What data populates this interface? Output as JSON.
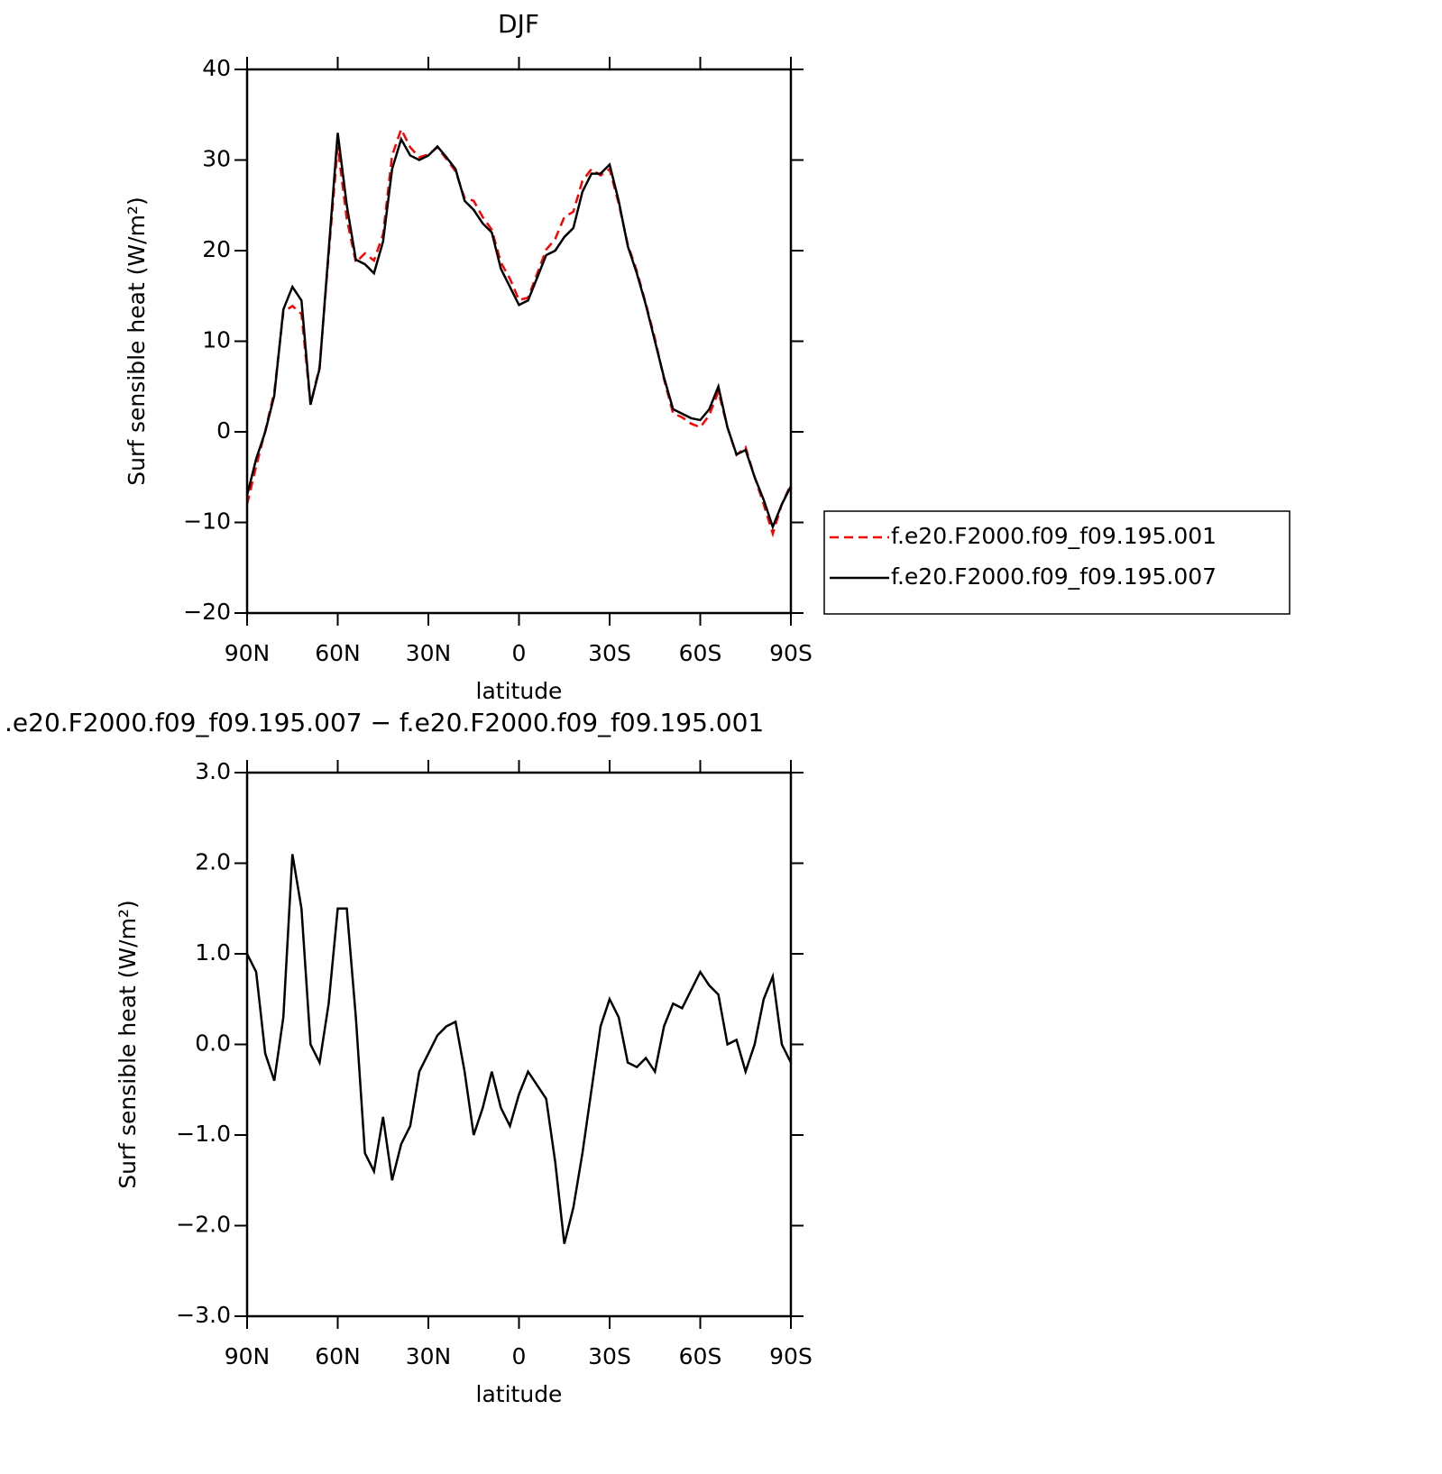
{
  "chart_data": [
    {
      "type": "line",
      "title": "DJF",
      "xlabel": "latitude",
      "ylabel": "Surf sensible heat (W/m²)",
      "x": [
        90,
        87,
        84,
        81,
        78,
        75,
        72,
        69,
        66,
        63,
        60,
        57,
        54,
        51,
        48,
        45,
        42,
        39,
        36,
        33,
        30,
        27,
        24,
        21,
        18,
        15,
        12,
        9,
        6,
        3,
        0,
        -3,
        -6,
        -9,
        -12,
        -15,
        -18,
        -21,
        -24,
        -27,
        -30,
        -33,
        -36,
        -39,
        -42,
        -45,
        -48,
        -51,
        -54,
        -57,
        -60,
        -63,
        -66,
        -69,
        -72,
        -75,
        -78,
        -81,
        -84,
        -87,
        -90
      ],
      "series": [
        {
          "name": "f.e20.F2000.f09_f09.195.001",
          "color": "#ff0000",
          "style": "dashed",
          "values": [
            -8.0,
            -3.8,
            0.1,
            4.4,
            13.2,
            13.9,
            13.0,
            3.0,
            7.2,
            19.55,
            31.5,
            23.5,
            18.7,
            19.7,
            18.9,
            21.8,
            30.5,
            33.4,
            31.4,
            30.3,
            30.6,
            31.4,
            30.1,
            28.75,
            25.8,
            25.5,
            23.7,
            22.3,
            18.7,
            16.9,
            14.55,
            14.8,
            17.45,
            20.1,
            21.3,
            23.7,
            24.3,
            27.7,
            29.0,
            28.3,
            29.0,
            25.2,
            20.7,
            17.75,
            14.15,
            10.3,
            5.8,
            2.05,
            1.6,
            0.9,
            0.5,
            1.85,
            4.45,
            0.5,
            -2.55,
            -1.7,
            -5.0,
            -8.0,
            -11.25,
            -8.0,
            -5.8
          ]
        },
        {
          "name": "f.e20.F2000.f09_f09.195.007",
          "color": "#000000",
          "style": "solid",
          "values": [
            -7,
            -3,
            0,
            4,
            13.5,
            16,
            14.5,
            3,
            7,
            20,
            33,
            25,
            19,
            18.5,
            17.5,
            21,
            29,
            32.3,
            30.5,
            30,
            30.5,
            31.5,
            30.3,
            29,
            25.5,
            24.5,
            23,
            22,
            18,
            16,
            14,
            14.5,
            17,
            19.5,
            20,
            21.5,
            22.5,
            26.5,
            28.5,
            28.5,
            29.5,
            25.5,
            20.5,
            17.5,
            14,
            10,
            6,
            2.5,
            2,
            1.5,
            1.3,
            2.5,
            5,
            0.5,
            -2.5,
            -2,
            -5,
            -7.5,
            -10.5,
            -8,
            -6
          ]
        }
      ],
      "xlim": [
        90,
        -90
      ],
      "xticks": [
        {
          "value": 90,
          "label": "90N"
        },
        {
          "value": 60,
          "label": "60N"
        },
        {
          "value": 30,
          "label": "30N"
        },
        0,
        {
          "value": -30,
          "label": "30S"
        },
        {
          "value": -60,
          "label": "60S"
        },
        {
          "value": -90,
          "label": "90S"
        }
      ],
      "ylim": [
        -20,
        40
      ],
      "yticks": [
        {
          "value": -20,
          "label": "−20"
        },
        {
          "value": -10,
          "label": "−10"
        },
        0,
        10,
        20,
        30,
        40
      ],
      "legend": "outside-right"
    },
    {
      "type": "line",
      "title": ".e20.F2000.f09_f09.195.007 − f.e20.F2000.f09_f09.195.001",
      "xlabel": "latitude",
      "ylabel": "Surf sensible heat (W/m²)",
      "x": [
        90,
        87,
        84,
        81,
        78,
        75,
        72,
        69,
        66,
        63,
        60,
        57,
        54,
        51,
        48,
        45,
        42,
        39,
        36,
        33,
        30,
        27,
        24,
        21,
        18,
        15,
        12,
        9,
        6,
        3,
        0,
        -3,
        -6,
        -9,
        -12,
        -15,
        -18,
        -21,
        -24,
        -27,
        -30,
        -33,
        -36,
        -39,
        -42,
        -45,
        -48,
        -51,
        -54,
        -57,
        -60,
        -63,
        -66,
        -69,
        -72,
        -75,
        -78,
        -81,
        -84,
        -87,
        -90
      ],
      "values": [
        1.0,
        0.8,
        -0.1,
        -0.4,
        0.3,
        2.1,
        1.5,
        0.0,
        -0.2,
        0.45,
        1.5,
        1.5,
        0.3,
        -1.2,
        -1.4,
        -0.8,
        -1.5,
        -1.1,
        -0.9,
        -0.3,
        -0.1,
        0.1,
        0.2,
        0.25,
        -0.3,
        -1.0,
        -0.7,
        -0.3,
        -0.7,
        -0.9,
        -0.55,
        -0.3,
        -0.45,
        -0.6,
        -1.3,
        -2.2,
        -1.8,
        -1.2,
        -0.5,
        0.2,
        0.5,
        0.3,
        -0.2,
        -0.25,
        -0.15,
        -0.3,
        0.2,
        0.45,
        0.4,
        0.6,
        0.8,
        0.65,
        0.55,
        0.0,
        0.05,
        -0.3,
        0.0,
        0.5,
        0.75,
        0.0,
        -0.2
      ],
      "color": "#000000",
      "xlim": [
        90,
        -90
      ],
      "xticks": [
        {
          "value": 90,
          "label": "90N"
        },
        {
          "value": 60,
          "label": "60N"
        },
        {
          "value": 30,
          "label": "30N"
        },
        0,
        {
          "value": -30,
          "label": "30S"
        },
        {
          "value": -60,
          "label": "60S"
        },
        {
          "value": -90,
          "label": "90S"
        }
      ],
      "ylim": [
        -3,
        3
      ],
      "yticks": [
        {
          "value": -3,
          "label": "−3.0"
        },
        {
          "value": -2,
          "label": "−2.0"
        },
        {
          "value": -1,
          "label": "−1.0"
        },
        {
          "value": 0,
          "label": "0.0"
        },
        {
          "value": 1,
          "label": "1.0"
        },
        {
          "value": 2,
          "label": "2.0"
        },
        {
          "value": 3,
          "label": "3.0"
        }
      ]
    }
  ]
}
